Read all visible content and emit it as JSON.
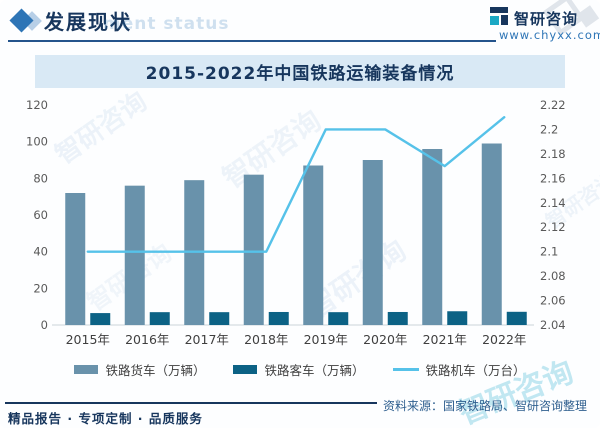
{
  "header": {
    "section_title": "发展现状",
    "ghost_text": "ment status",
    "brand_name": "智研咨询",
    "brand_url": "www.chyxx.com"
  },
  "chart": {
    "title": "2015-2022年中国铁路运输装备情况"
  },
  "chart_data": {
    "type": "bar+line combo",
    "title": "2015-2022年中国铁路运输装备情况",
    "categories": [
      "2015年",
      "2016年",
      "2017年",
      "2018年",
      "2019年",
      "2020年",
      "2021年",
      "2022年"
    ],
    "series": [
      {
        "name": "铁路货车（万辆）",
        "type": "bar",
        "axis": "left",
        "color": "#6992ab",
        "values": [
          72,
          76,
          79,
          82,
          87,
          90,
          96,
          99
        ]
      },
      {
        "name": "铁路客车（万辆）",
        "type": "bar",
        "axis": "left",
        "color": "#0c6285",
        "values": [
          6.5,
          7,
          7,
          7.1,
          7,
          7.1,
          7.5,
          7.2
        ]
      },
      {
        "name": "铁路机车（万台）",
        "type": "line",
        "axis": "right",
        "color": "#56c2e9",
        "values": [
          2.1,
          2.1,
          2.1,
          2.1,
          2.2,
          2.2,
          2.17,
          2.21
        ]
      }
    ],
    "left_axis": {
      "min": 0,
      "max": 120,
      "step": 20
    },
    "right_axis": {
      "min": 2.04,
      "max": 2.22,
      "step": 0.02
    },
    "legend_position": "bottom",
    "grid": false
  },
  "footer": {
    "tagline": "精品报告 · 专项定制 · 品质服务",
    "source": "资料来源：国家铁路局、智研咨询整理"
  },
  "watermark": {
    "text": "智研咨询"
  },
  "colors": {
    "navy": "#17365d",
    "blue": "#2e75b6",
    "band_bg": "#d9e9f5",
    "teal": "#1aa8c4"
  }
}
